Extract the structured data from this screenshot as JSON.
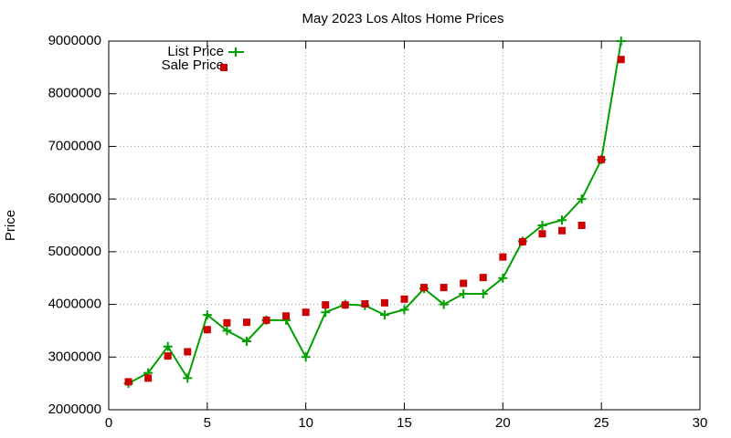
{
  "chart_data": {
    "type": "scatter",
    "title": "May 2023 Los Altos Home Prices",
    "y_label": "Price",
    "x": [
      1,
      2,
      3,
      4,
      5,
      6,
      7,
      8,
      9,
      10,
      11,
      12,
      13,
      14,
      15,
      16,
      17,
      18,
      19,
      20,
      21,
      22,
      23,
      24,
      25,
      26
    ],
    "series": [
      {
        "name": "List Price",
        "color": "#00a000",
        "style": "linespoints",
        "values": [
          2500000,
          2700000,
          3200000,
          2600000,
          3800000,
          3500000,
          3300000,
          3700000,
          3700000,
          3000000,
          3850000,
          4000000,
          3980000,
          3800000,
          3900000,
          4300000,
          4000000,
          4200000,
          4200000,
          4500000,
          5200000,
          5500000,
          5600000,
          6000000,
          6750000,
          9000000
        ]
      },
      {
        "name": "Sale Price",
        "color": "#cc0000",
        "style": "points",
        "values": [
          2530000,
          2600000,
          3020000,
          3100000,
          3520000,
          3650000,
          3660000,
          3700000,
          3780000,
          3850000,
          3990000,
          3990000,
          4010000,
          4030000,
          4100000,
          4320000,
          4320000,
          4400000,
          4510000,
          4900000,
          5190000,
          5340000,
          5400000,
          5500000,
          6750000,
          8650000
        ]
      }
    ],
    "xlim": [
      0,
      30
    ],
    "xticks": [
      0,
      5,
      10,
      15,
      20,
      25,
      30
    ],
    "ylim": [
      2000000,
      9000000
    ],
    "yticks": [
      2000000,
      3000000,
      4000000,
      5000000,
      6000000,
      7000000,
      8000000,
      9000000
    ],
    "grid": true,
    "legend": "top-left"
  }
}
